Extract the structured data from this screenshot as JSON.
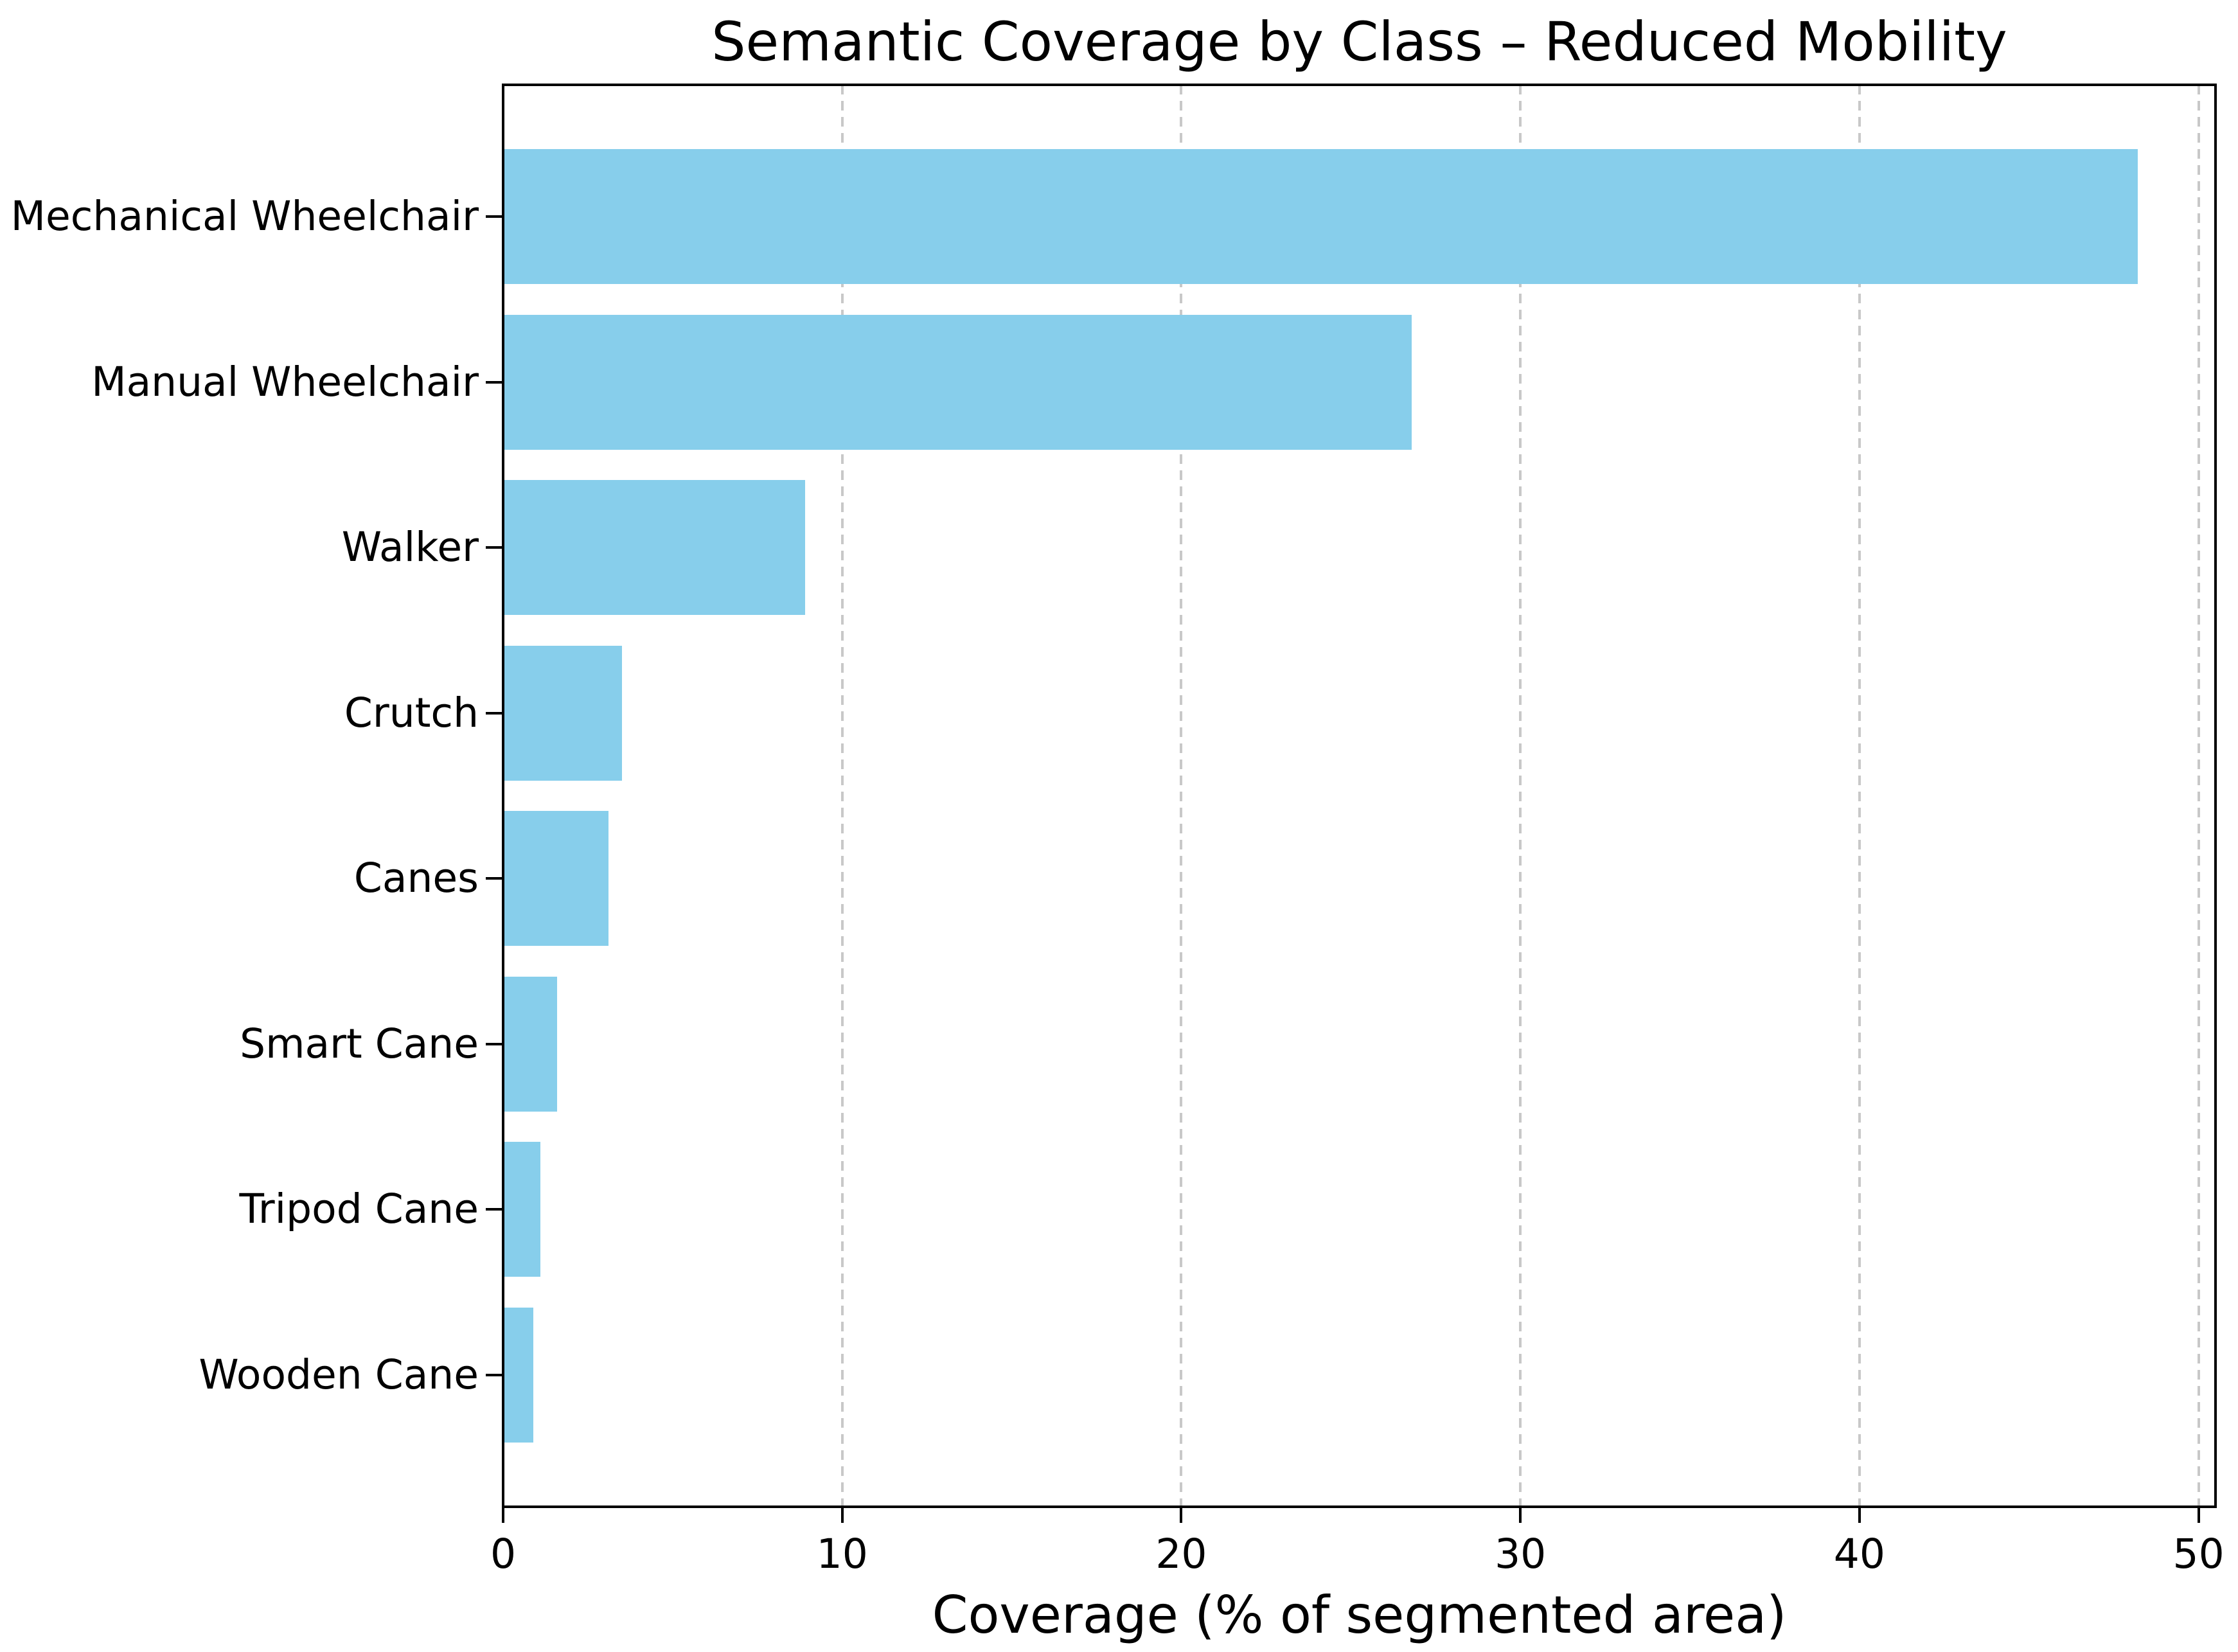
{
  "chart_data": {
    "type": "bar",
    "orientation": "horizontal",
    "title": "Semantic Coverage by Class – Reduced Mobility",
    "xlabel": "Coverage (% of segmented area)",
    "ylabel": "",
    "categories": [
      "Mechanical Wheelchair",
      "Manual Wheelchair",
      "Walker",
      "Crutch",
      "Canes",
      "Smart Cane",
      "Tripod Cane",
      "Wooden Cane"
    ],
    "values": [
      48.2,
      26.8,
      8.9,
      3.5,
      3.1,
      1.6,
      1.1,
      0.9
    ],
    "xlim": [
      0,
      50.5
    ],
    "xticks": [
      0,
      10,
      20,
      30,
      40,
      50
    ],
    "grid": "vertical-dashed-behind-bars",
    "legend": "none",
    "bar_color": "#87CEEB",
    "grid_color": "#c8c8c8",
    "axis_color": "#000000",
    "text_color": "#000000",
    "background_color": "#ffffff"
  }
}
